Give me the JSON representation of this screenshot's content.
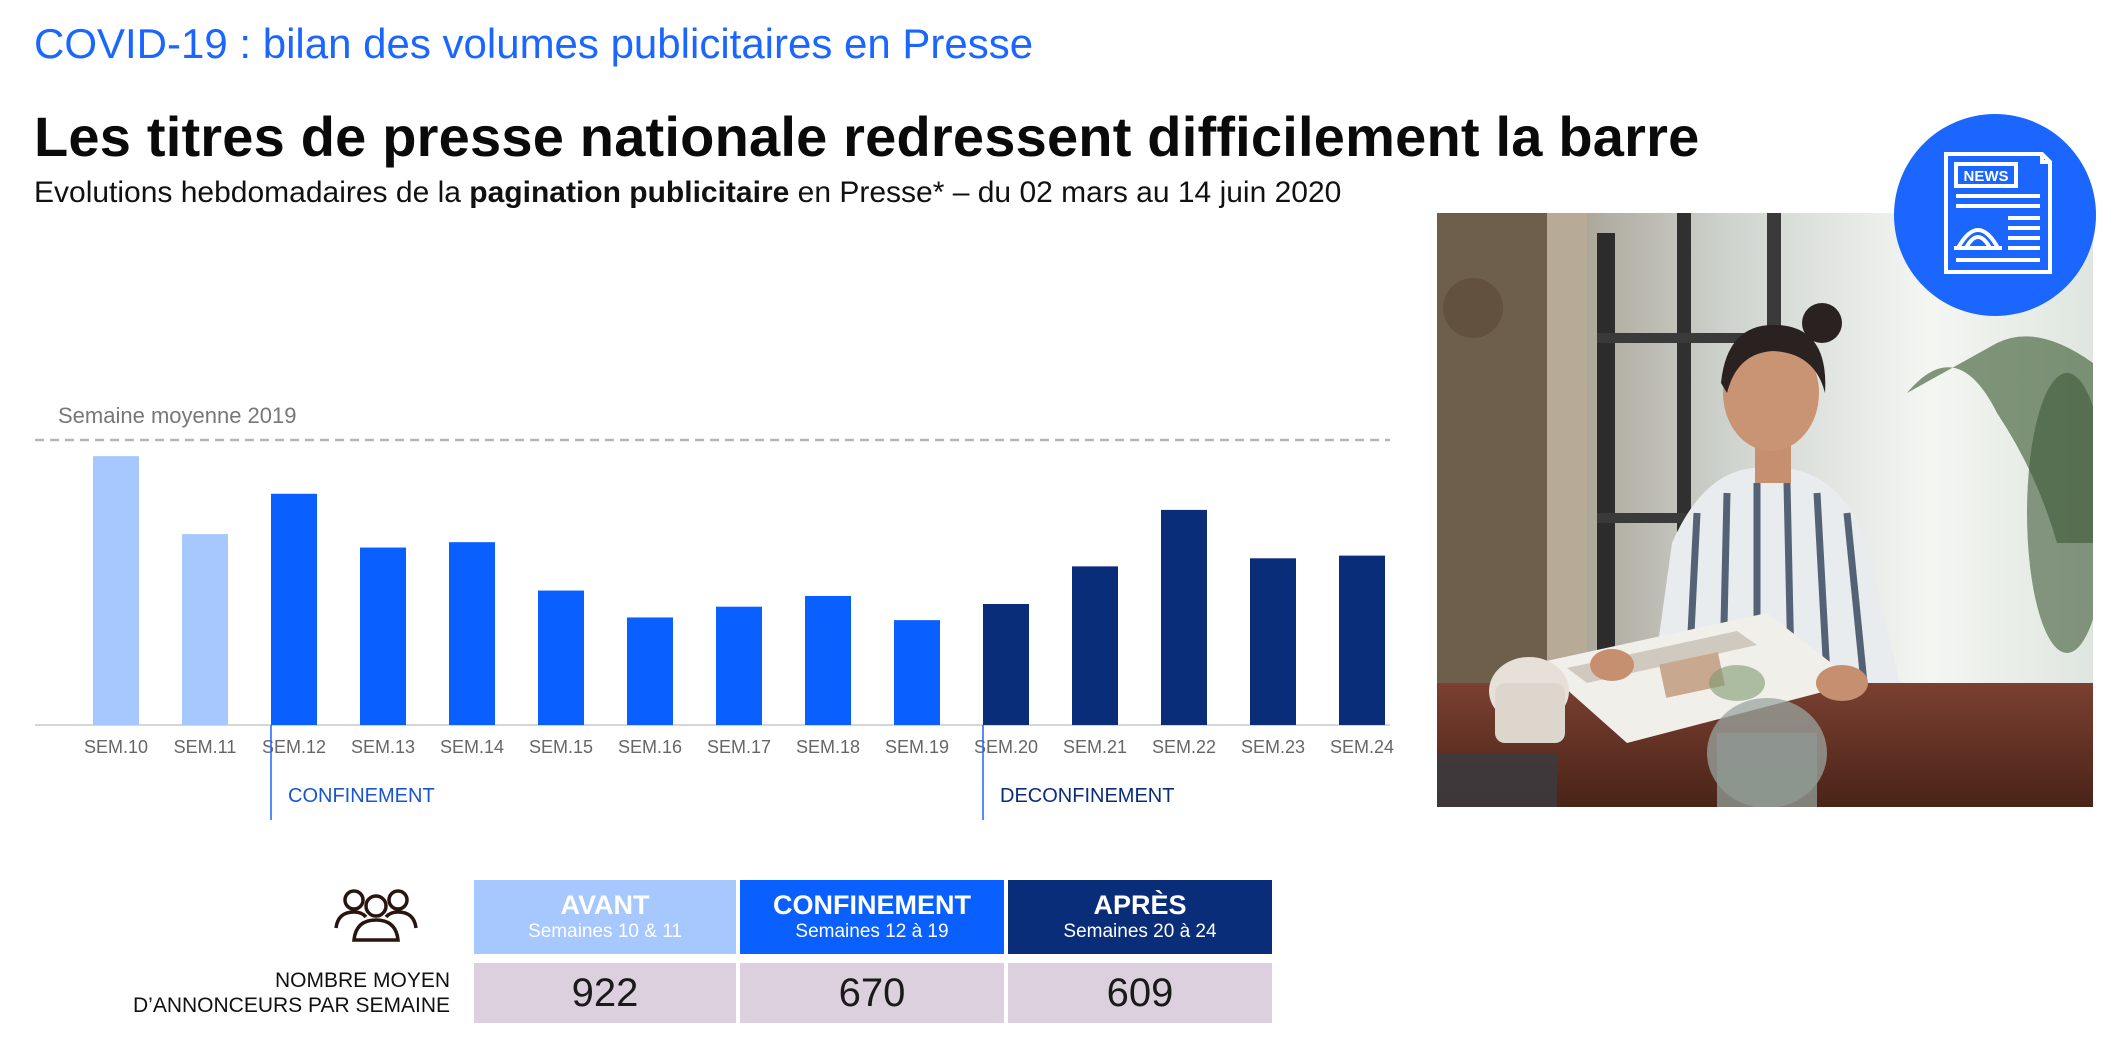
{
  "header": {
    "kicker": "COVID-19 : bilan des volumes publicitaires en Presse",
    "title": "Les titres de presse nationale redressent difficilement la barre",
    "subtitle_pre": "Evolutions hebdomadaires de la ",
    "subtitle_bold": "pagination publicitaire",
    "subtitle_post": " en Presse* – du 02 mars au 14 juin 2020"
  },
  "chart_data": {
    "type": "bar",
    "categories": [
      "SEM.10",
      "SEM.11",
      "SEM.12",
      "SEM.13",
      "SEM.14",
      "SEM.15",
      "SEM.16",
      "SEM.17",
      "SEM.18",
      "SEM.19",
      "SEM.20",
      "SEM.21",
      "SEM.22",
      "SEM.23",
      "SEM.24"
    ],
    "values": [
      100,
      71,
      86,
      66,
      68,
      50,
      40,
      44,
      48,
      39,
      45,
      59,
      80,
      62,
      63
    ],
    "phases": [
      "avant",
      "avant",
      "confinement",
      "confinement",
      "confinement",
      "confinement",
      "confinement",
      "confinement",
      "confinement",
      "confinement",
      "apres",
      "apres",
      "apres",
      "apres",
      "apres"
    ],
    "reference_line": {
      "label": "Semaine moyenne 2019",
      "value": 106
    },
    "ylim": [
      0,
      106
    ],
    "markers": [
      {
        "at": "SEM.12",
        "label": "CONFINEMENT"
      },
      {
        "at": "SEM.20",
        "label": "DECONFINEMENT"
      }
    ],
    "colors": {
      "avant": "#a6c8ff",
      "confinement": "#0a5fff",
      "apres": "#0a2d7a",
      "marker": "#1a66ff"
    }
  },
  "summary": {
    "row_label_line1": "NOMBRE MOYEN",
    "row_label_line2": "D’ANNONCEURS PAR SEMAINE",
    "columns": [
      {
        "title": "AVANT",
        "subtitle": "Semaines 10 & 11",
        "value": "922",
        "color": "#a6c8ff"
      },
      {
        "title": "CONFINEMENT",
        "subtitle": "Semaines 12 à 19",
        "value": "670",
        "color": "#0a5fff"
      },
      {
        "title": "APRÈS",
        "subtitle": "Semaines 20 à 24",
        "value": "609",
        "color": "#0a2d7a"
      }
    ]
  },
  "badge": {
    "text": "NEWS",
    "icon": "newspaper-icon"
  },
  "icons": {
    "people": "people-group-icon"
  }
}
